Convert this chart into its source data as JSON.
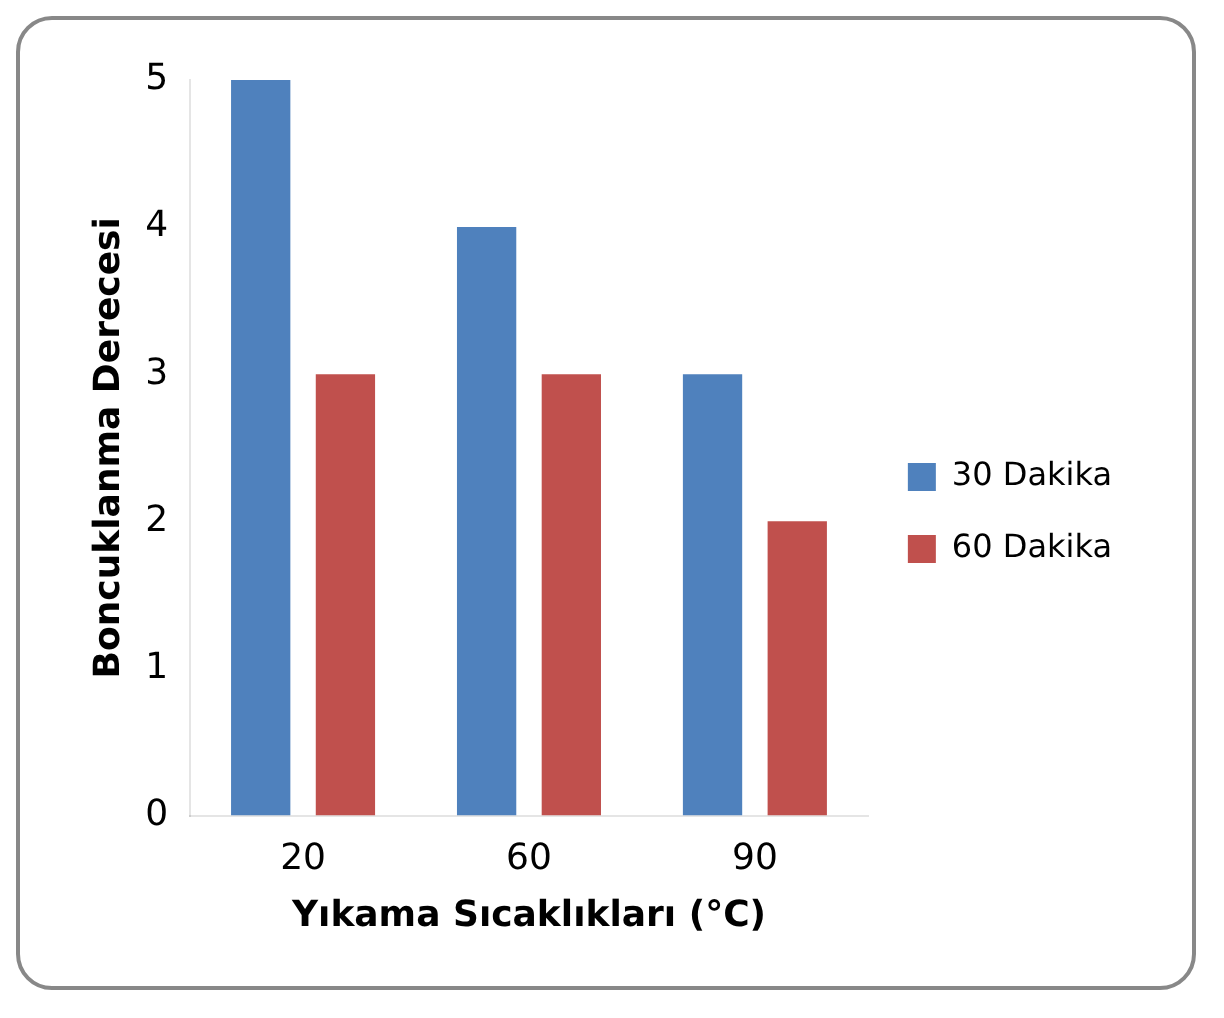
{
  "chart_data": {
    "type": "bar",
    "categories": [
      "20",
      "60",
      "90"
    ],
    "xlabel": "Yıkama Sıcaklıkları (°C)",
    "ylabel": "Boncuklanma Derecesi",
    "ylim": [
      0,
      5
    ],
    "yticks": [
      0,
      1,
      2,
      3,
      4,
      5
    ],
    "legend": "right",
    "series": [
      {
        "name": "30 Dakika",
        "color": "#4f81bd",
        "values": [
          5,
          4,
          3
        ]
      },
      {
        "name": "60 Dakika",
        "color": "#c0504d",
        "values": [
          3,
          3,
          2
        ]
      }
    ]
  }
}
